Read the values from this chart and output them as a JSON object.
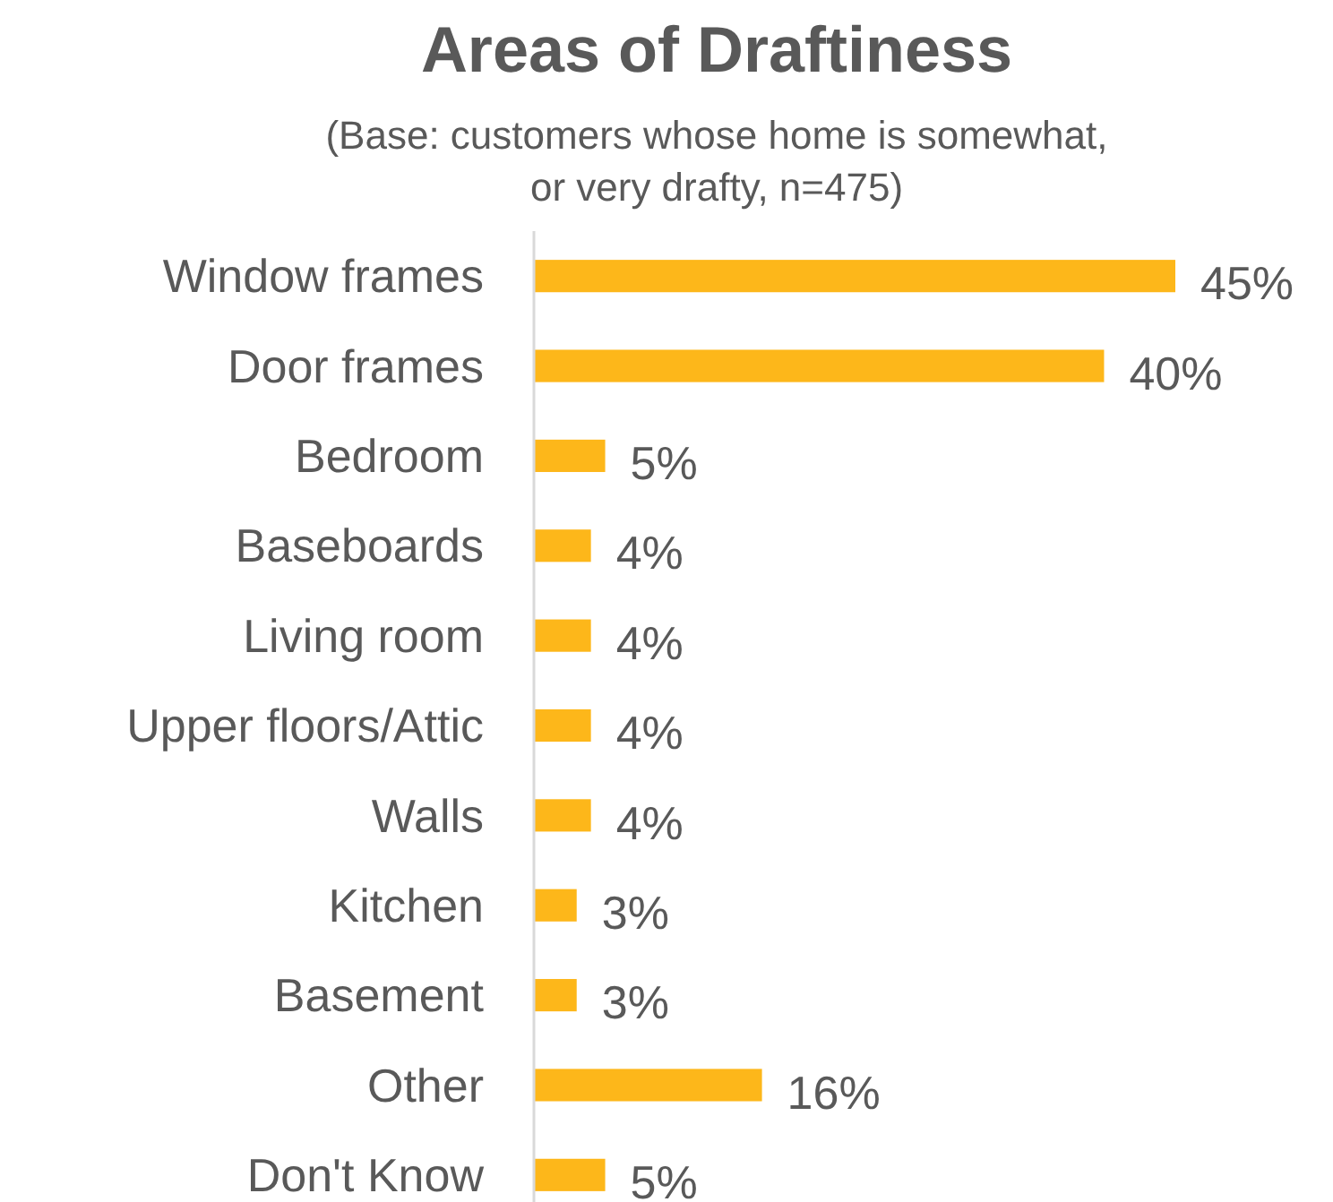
{
  "chart_data": {
    "type": "bar",
    "orientation": "horizontal",
    "title": "Areas of Draftiness",
    "subtitle": "(Base: customers whose home is somewhat, or very drafty, n=475)",
    "categories": [
      "Window frames",
      "Door frames",
      "Bedroom",
      "Baseboards",
      "Living room",
      "Upper floors/Attic",
      "Walls",
      "Kitchen",
      "Basement",
      "Other",
      "Don't Know"
    ],
    "values": [
      45,
      40,
      5,
      4,
      4,
      4,
      4,
      3,
      3,
      16,
      5
    ],
    "value_labels": [
      "45%",
      "40%",
      "5%",
      "4%",
      "4%",
      "4%",
      "4%",
      "3%",
      "3%",
      "16%",
      "5%"
    ],
    "color": "#fdb71a"
  }
}
